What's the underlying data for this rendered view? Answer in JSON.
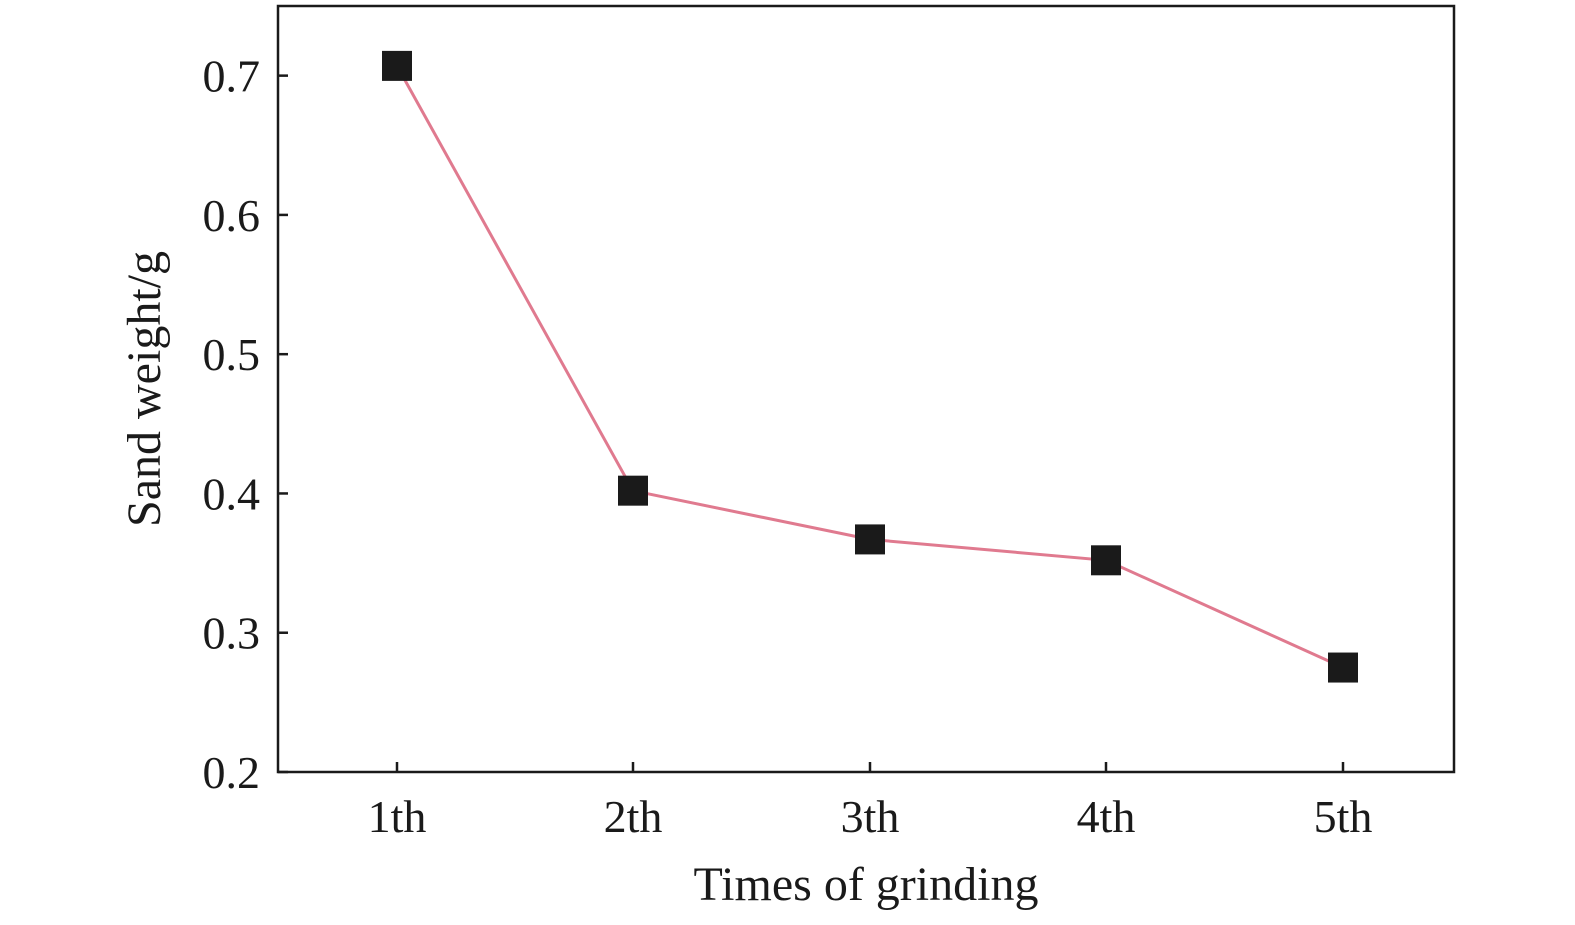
{
  "chart_data": {
    "type": "line",
    "title": "",
    "xlabel": "Times of grinding",
    "ylabel": "Sand weight/g",
    "categories": [
      "1th",
      "2th",
      "3th",
      "4th",
      "5th"
    ],
    "series": [
      {
        "values": [
          0.707,
          0.402,
          0.367,
          0.352,
          0.275
        ]
      }
    ],
    "ylim": [
      0.2,
      0.75
    ],
    "yticks": [
      "0.2",
      "0.3",
      "0.4",
      "0.5",
      "0.6",
      "0.7"
    ],
    "grid": false,
    "legend": "none",
    "colors": {
      "line": "#e07a8f",
      "marker": "#1a1a1a",
      "axis": "#1a1a1a"
    },
    "marker": "square"
  }
}
